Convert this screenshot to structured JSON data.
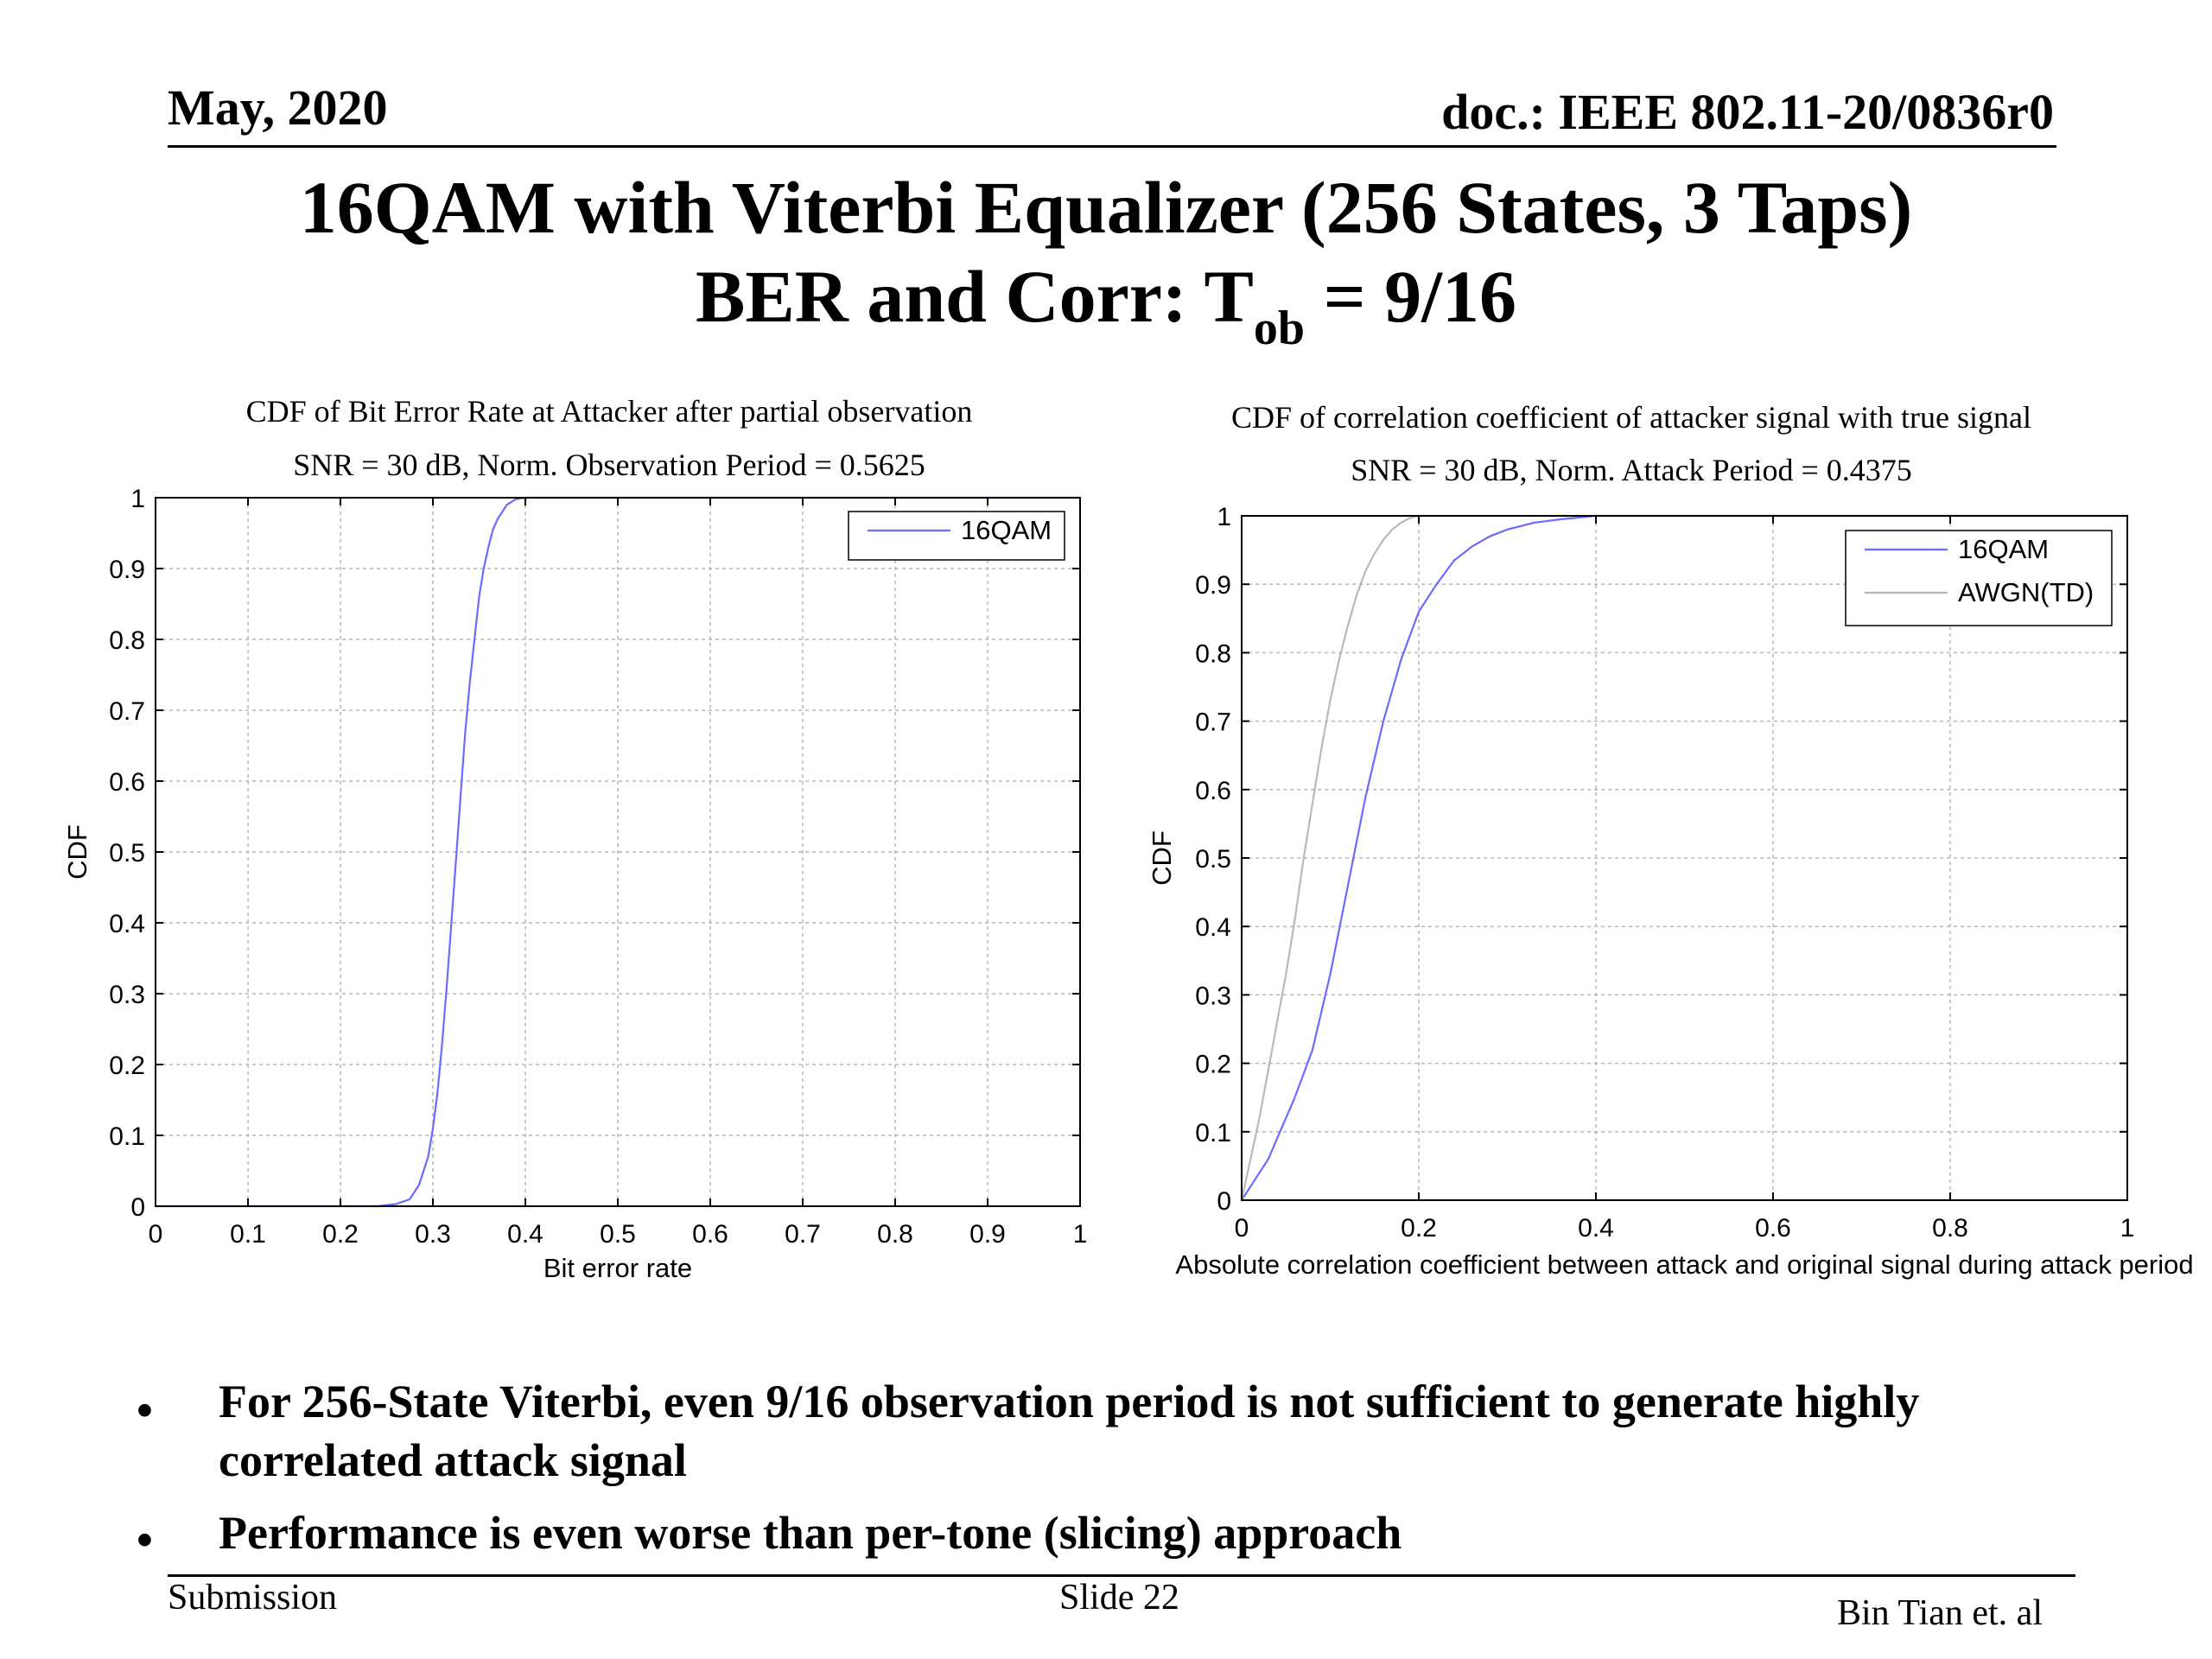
{
  "header": {
    "date": "May, 2020",
    "doc": "doc.: IEEE 802.11-20/0836r0"
  },
  "title": {
    "line1": "16QAM with Viterbi Equalizer (256 States, 3 Taps)",
    "line2_prefix": "BER and Corr: T",
    "line2_sub": "ob",
    "line2_suffix": " = 9/16"
  },
  "chart_data": [
    {
      "type": "line",
      "title": "CDF of Bit Error Rate at Attacker after partial observation",
      "subtitle": "SNR = 30 dB, Norm. Observation Period = 0.5625",
      "xlabel": "Bit error rate",
      "ylabel": "CDF",
      "xlim": [
        0,
        1
      ],
      "ylim": [
        0,
        1
      ],
      "xticks": [
        0,
        0.1,
        0.2,
        0.3,
        0.4,
        0.5,
        0.6,
        0.7,
        0.8,
        0.9,
        1
      ],
      "xtick_labels": [
        "0",
        "0.1",
        "0.2",
        "0.3",
        "0.4",
        "0.5",
        "0.6",
        "0.7",
        "0.8",
        "0.9",
        "1"
      ],
      "yticks": [
        0,
        0.1,
        0.2,
        0.3,
        0.4,
        0.5,
        0.6,
        0.7,
        0.8,
        0.9,
        1
      ],
      "ytick_labels": [
        "0",
        "0.1",
        "0.2",
        "0.3",
        "0.4",
        "0.5",
        "0.6",
        "0.7",
        "0.8",
        "0.9",
        "1"
      ],
      "grid": true,
      "legend": "top-right",
      "series": [
        {
          "name": "16QAM",
          "color": "#6b6bff",
          "x": [
            0,
            0.24,
            0.26,
            0.275,
            0.285,
            0.295,
            0.3,
            0.305,
            0.31,
            0.315,
            0.32,
            0.325,
            0.33,
            0.335,
            0.34,
            0.345,
            0.35,
            0.355,
            0.36,
            0.365,
            0.37,
            0.38,
            0.39,
            0.4,
            1
          ],
          "y": [
            0,
            0,
            0.003,
            0.01,
            0.03,
            0.07,
            0.11,
            0.16,
            0.23,
            0.31,
            0.4,
            0.49,
            0.58,
            0.67,
            0.74,
            0.8,
            0.86,
            0.9,
            0.93,
            0.955,
            0.97,
            0.99,
            0.998,
            1,
            1
          ]
        }
      ]
    },
    {
      "type": "line",
      "title": "CDF of correlation coefficient of attacker signal with true signal",
      "subtitle": "SNR = 30 dB, Norm. Attack Period = 0.4375",
      "xlabel": "Absolute correlation coefficient between attack and original signal during attack period",
      "ylabel": "CDF",
      "xlim": [
        0,
        1
      ],
      "ylim": [
        0,
        1
      ],
      "xticks": [
        0,
        0.2,
        0.4,
        0.6,
        0.8,
        1
      ],
      "xtick_labels": [
        "0",
        "0.2",
        "0.4",
        "0.6",
        "0.8",
        "1"
      ],
      "yticks": [
        0,
        0.1,
        0.2,
        0.3,
        0.4,
        0.5,
        0.6,
        0.7,
        0.8,
        0.9,
        1
      ],
      "ytick_labels": [
        "0",
        "0.1",
        "0.2",
        "0.3",
        "0.4",
        "0.5",
        "0.6",
        "0.7",
        "0.8",
        "0.9",
        "1"
      ],
      "grid": true,
      "legend": "top-right",
      "series": [
        {
          "name": "16QAM",
          "color": "#6b6bff",
          "x": [
            0,
            0.005,
            0.01,
            0.02,
            0.03,
            0.04,
            0.06,
            0.08,
            0.1,
            0.12,
            0.14,
            0.16,
            0.18,
            0.2,
            0.22,
            0.24,
            0.26,
            0.28,
            0.3,
            0.33,
            0.36,
            0.4,
            1
          ],
          "y": [
            0,
            0.01,
            0.02,
            0.04,
            0.06,
            0.09,
            0.15,
            0.22,
            0.33,
            0.46,
            0.59,
            0.7,
            0.79,
            0.86,
            0.9,
            0.935,
            0.955,
            0.97,
            0.98,
            0.99,
            0.995,
            1,
            1
          ]
        },
        {
          "name": "AWGN(TD)",
          "color": "#b9b9b9",
          "x": [
            0,
            0.005,
            0.01,
            0.02,
            0.03,
            0.04,
            0.05,
            0.06,
            0.07,
            0.08,
            0.09,
            0.1,
            0.11,
            0.12,
            0.13,
            0.14,
            0.15,
            0.16,
            0.17,
            0.18,
            0.19,
            0.2,
            1
          ],
          "y": [
            0,
            0.03,
            0.06,
            0.12,
            0.19,
            0.26,
            0.33,
            0.41,
            0.5,
            0.58,
            0.66,
            0.73,
            0.79,
            0.84,
            0.885,
            0.92,
            0.945,
            0.965,
            0.98,
            0.99,
            0.997,
            1,
            1
          ]
        }
      ]
    }
  ],
  "bullets": [
    "For 256-State Viterbi, even 9/16 observation period is not sufficient to generate highly correlated attack signal",
    "Performance is even worse than per-tone (slicing) approach"
  ],
  "bullet_symbol": "•",
  "footer": {
    "left": "Submission",
    "center": "Slide 22",
    "right": "Bin Tian et. al"
  }
}
